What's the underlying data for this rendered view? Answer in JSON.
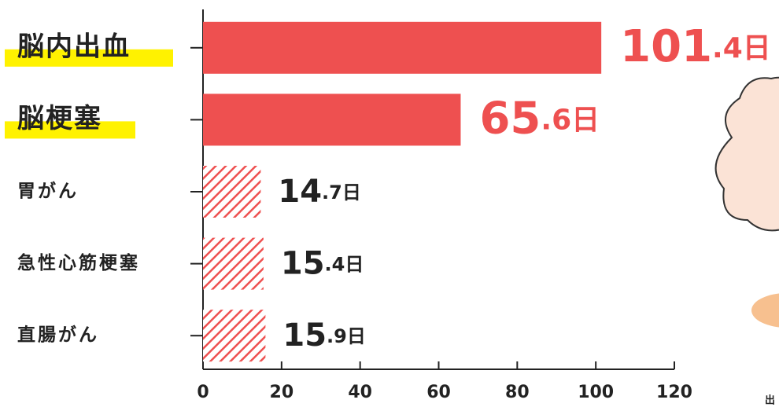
{
  "chart_data": {
    "type": "bar",
    "orientation": "horizontal",
    "categories": [
      "脳内出血",
      "脳梗塞",
      "胃がん",
      "急性心筋梗塞",
      "直腸がん"
    ],
    "values": [
      101.4,
      65.6,
      14.7,
      15.4,
      15.9
    ],
    "value_labels": [
      "101.4日",
      "65.6日",
      "14.7日",
      "15.4日",
      "15.9日"
    ],
    "color": "#ee5050",
    "hatched": [
      false,
      false,
      true,
      true,
      true
    ],
    "highlighted": [
      true,
      true,
      false,
      false,
      false
    ],
    "highlight_color": "#fff200",
    "value_label_colors": [
      "#ee5050",
      "#ee5050",
      "#222222",
      "#222222",
      "#222222"
    ],
    "xlim": [
      0,
      120
    ],
    "xticks": [
      0,
      20,
      40,
      60,
      80,
      100,
      120
    ],
    "note": "出"
  }
}
